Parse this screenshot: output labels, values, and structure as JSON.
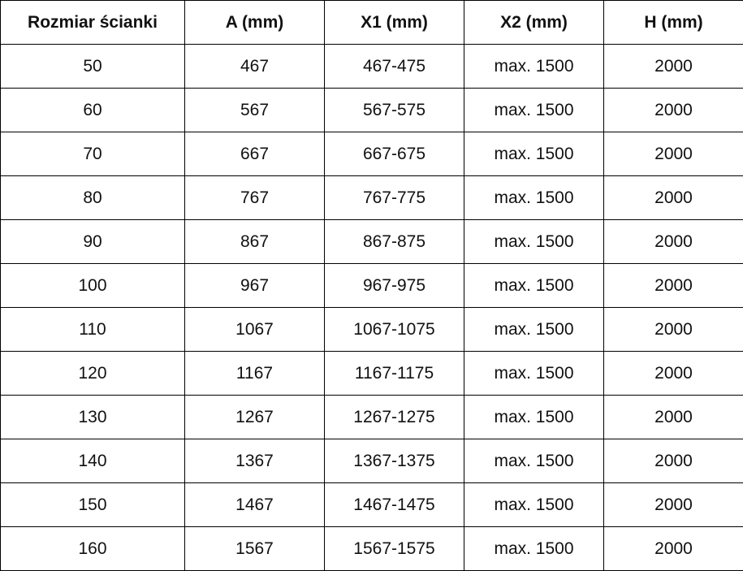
{
  "table": {
    "headers": [
      "Rozmiar ścianki",
      "A (mm)",
      "X1 (mm)",
      "X2 (mm)",
      "H (mm)"
    ],
    "rows": [
      [
        "50",
        "467",
        "467-475",
        "max. 1500",
        "2000"
      ],
      [
        "60",
        "567",
        "567-575",
        "max. 1500",
        "2000"
      ],
      [
        "70",
        "667",
        "667-675",
        "max. 1500",
        "2000"
      ],
      [
        "80",
        "767",
        "767-775",
        "max. 1500",
        "2000"
      ],
      [
        "90",
        "867",
        "867-875",
        "max. 1500",
        "2000"
      ],
      [
        "100",
        "967",
        "967-975",
        "max. 1500",
        "2000"
      ],
      [
        "110",
        "1067",
        "1067-1075",
        "max. 1500",
        "2000"
      ],
      [
        "120",
        "1167",
        "1167-1175",
        "max. 1500",
        "2000"
      ],
      [
        "130",
        "1267",
        "1267-1275",
        "max. 1500",
        "2000"
      ],
      [
        "140",
        "1367",
        "1367-1375",
        "max. 1500",
        "2000"
      ],
      [
        "150",
        "1467",
        "1467-1475",
        "max. 1500",
        "2000"
      ],
      [
        "160",
        "1567",
        "1567-1575",
        "max. 1500",
        "2000"
      ]
    ]
  }
}
